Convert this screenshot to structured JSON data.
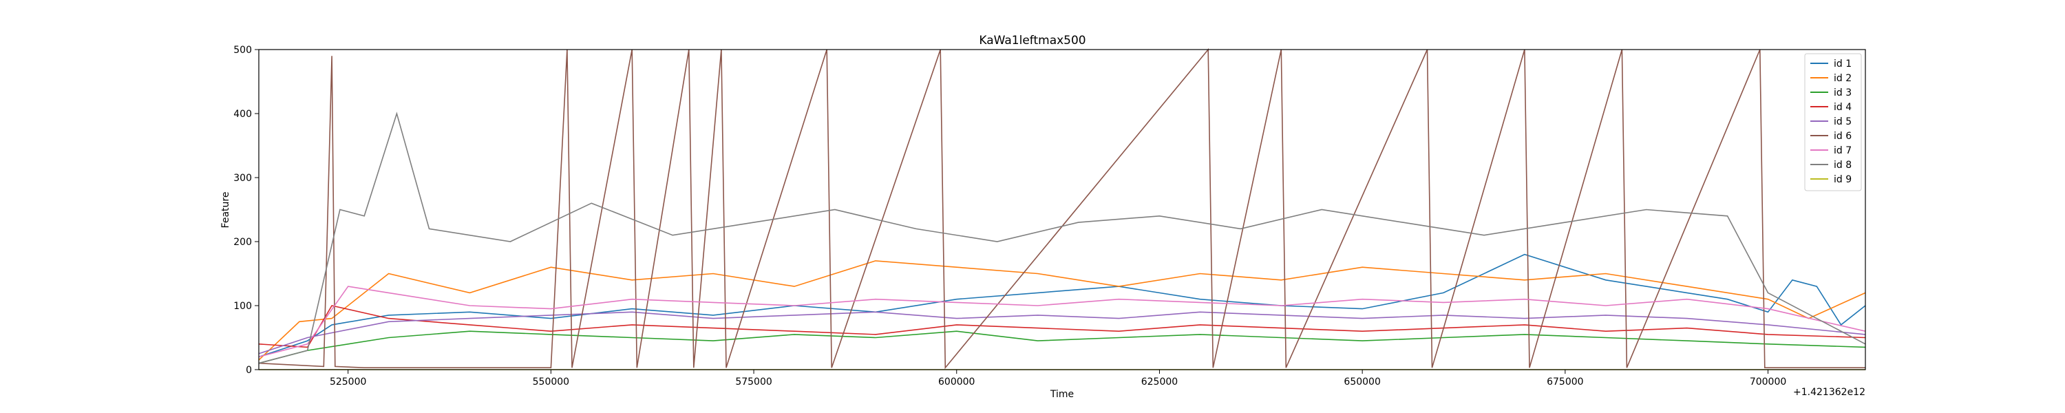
{
  "chart_data": {
    "type": "line",
    "title": "KaWa1leftmax500",
    "xlabel": "Time",
    "ylabel": "Feature",
    "x_offset_label": "+1.421362e12",
    "xlim": [
      514000,
      712000
    ],
    "ylim": [
      0,
      500
    ],
    "x_ticks": [
      525000,
      550000,
      575000,
      600000,
      625000,
      650000,
      675000,
      700000
    ],
    "x_tick_labels": [
      "525000",
      "550000",
      "575000",
      "600000",
      "625000",
      "650000",
      "675000",
      "700000"
    ],
    "y_ticks": [
      0,
      100,
      200,
      300,
      400,
      500
    ],
    "y_tick_labels": [
      "0",
      "100",
      "200",
      "300",
      "400",
      "500"
    ],
    "grid": false,
    "legend_position": "top-right",
    "series": [
      {
        "name": "id 1",
        "color": "#1f77b4",
        "x": [
          514000,
          520000,
          523000,
          530000,
          540000,
          550000,
          560000,
          570000,
          580000,
          590000,
          600000,
          610000,
          620000,
          630000,
          640000,
          650000,
          660000,
          670000,
          680000,
          690000,
          695000,
          700000,
          703000,
          706000,
          709000,
          712000
        ],
        "y": [
          20,
          45,
          70,
          85,
          90,
          80,
          95,
          85,
          100,
          90,
          110,
          120,
          130,
          110,
          100,
          95,
          120,
          180,
          140,
          120,
          110,
          90,
          140,
          130,
          70,
          100
        ]
      },
      {
        "name": "id 2",
        "color": "#ff7f0e",
        "x": [
          514000,
          519000,
          523000,
          530000,
          540000,
          550000,
          560000,
          570000,
          580000,
          590000,
          600000,
          610000,
          620000,
          630000,
          640000,
          650000,
          660000,
          670000,
          680000,
          690000,
          700000,
          705000,
          712000
        ],
        "y": [
          15,
          75,
          80,
          150,
          120,
          160,
          140,
          150,
          130,
          170,
          160,
          150,
          130,
          150,
          140,
          160,
          150,
          140,
          150,
          130,
          110,
          80,
          120
        ]
      },
      {
        "name": "id 3",
        "color": "#2ca02c",
        "x": [
          514000,
          520000,
          530000,
          540000,
          550000,
          560000,
          570000,
          580000,
          590000,
          600000,
          610000,
          620000,
          630000,
          640000,
          650000,
          660000,
          670000,
          680000,
          690000,
          700000,
          712000
        ],
        "y": [
          10,
          30,
          50,
          60,
          55,
          50,
          45,
          55,
          50,
          60,
          45,
          50,
          55,
          50,
          45,
          50,
          55,
          50,
          45,
          40,
          35
        ]
      },
      {
        "name": "id 4",
        "color": "#d62728",
        "x": [
          514000,
          520000,
          523000,
          530000,
          540000,
          550000,
          560000,
          570000,
          580000,
          590000,
          600000,
          610000,
          620000,
          630000,
          640000,
          650000,
          660000,
          670000,
          680000,
          690000,
          700000,
          712000
        ],
        "y": [
          40,
          35,
          100,
          80,
          70,
          60,
          70,
          65,
          60,
          55,
          70,
          65,
          60,
          70,
          65,
          60,
          65,
          70,
          60,
          65,
          55,
          50
        ]
      },
      {
        "name": "id 5",
        "color": "#9467bd",
        "x": [
          514000,
          520000,
          530000,
          540000,
          550000,
          560000,
          570000,
          580000,
          590000,
          600000,
          610000,
          620000,
          630000,
          640000,
          650000,
          660000,
          670000,
          680000,
          690000,
          700000,
          712000
        ],
        "y": [
          25,
          50,
          75,
          80,
          85,
          90,
          80,
          85,
          90,
          80,
          85,
          80,
          90,
          85,
          80,
          85,
          80,
          85,
          80,
          70,
          55
        ]
      },
      {
        "name": "id 6",
        "color": "#8c564b",
        "x": [
          514000,
          522000,
          523000,
          523400,
          527000,
          550000,
          552000,
          552600,
          560000,
          560600,
          567000,
          567600,
          571000,
          571600,
          584000,
          584600,
          598000,
          598600,
          631000,
          631600,
          640000,
          640600,
          658000,
          658600,
          670000,
          670600,
          682000,
          682600,
          699000,
          699600,
          712000
        ],
        "y": [
          10,
          5,
          490,
          5,
          3,
          3,
          500,
          3,
          500,
          3,
          500,
          3,
          500,
          3,
          500,
          3,
          500,
          3,
          500,
          3,
          500,
          3,
          500,
          3,
          500,
          3,
          500,
          3,
          500,
          3,
          3
        ]
      },
      {
        "name": "id 7",
        "color": "#e377c2",
        "x": [
          514000,
          520000,
          525000,
          530000,
          540000,
          550000,
          560000,
          570000,
          580000,
          590000,
          600000,
          610000,
          620000,
          630000,
          640000,
          650000,
          660000,
          670000,
          680000,
          690000,
          700000,
          712000
        ],
        "y": [
          20,
          40,
          130,
          120,
          100,
          95,
          110,
          105,
          100,
          110,
          105,
          100,
          110,
          105,
          100,
          110,
          105,
          110,
          100,
          110,
          95,
          60
        ]
      },
      {
        "name": "id 8",
        "color": "#7f7f7f",
        "x": [
          514000,
          520000,
          524000,
          527000,
          531000,
          535000,
          545000,
          555000,
          565000,
          575000,
          585000,
          595000,
          605000,
          615000,
          625000,
          635000,
          645000,
          655000,
          665000,
          675000,
          685000,
          695000,
          700000,
          712000
        ],
        "y": [
          10,
          30,
          250,
          240,
          400,
          220,
          200,
          260,
          210,
          230,
          250,
          220,
          200,
          230,
          240,
          220,
          250,
          230,
          210,
          230,
          250,
          240,
          120,
          40
        ]
      },
      {
        "name": "id 9",
        "color": "#bcbd22",
        "x": [
          514000,
          712000
        ],
        "y": [
          0,
          0
        ]
      }
    ]
  }
}
